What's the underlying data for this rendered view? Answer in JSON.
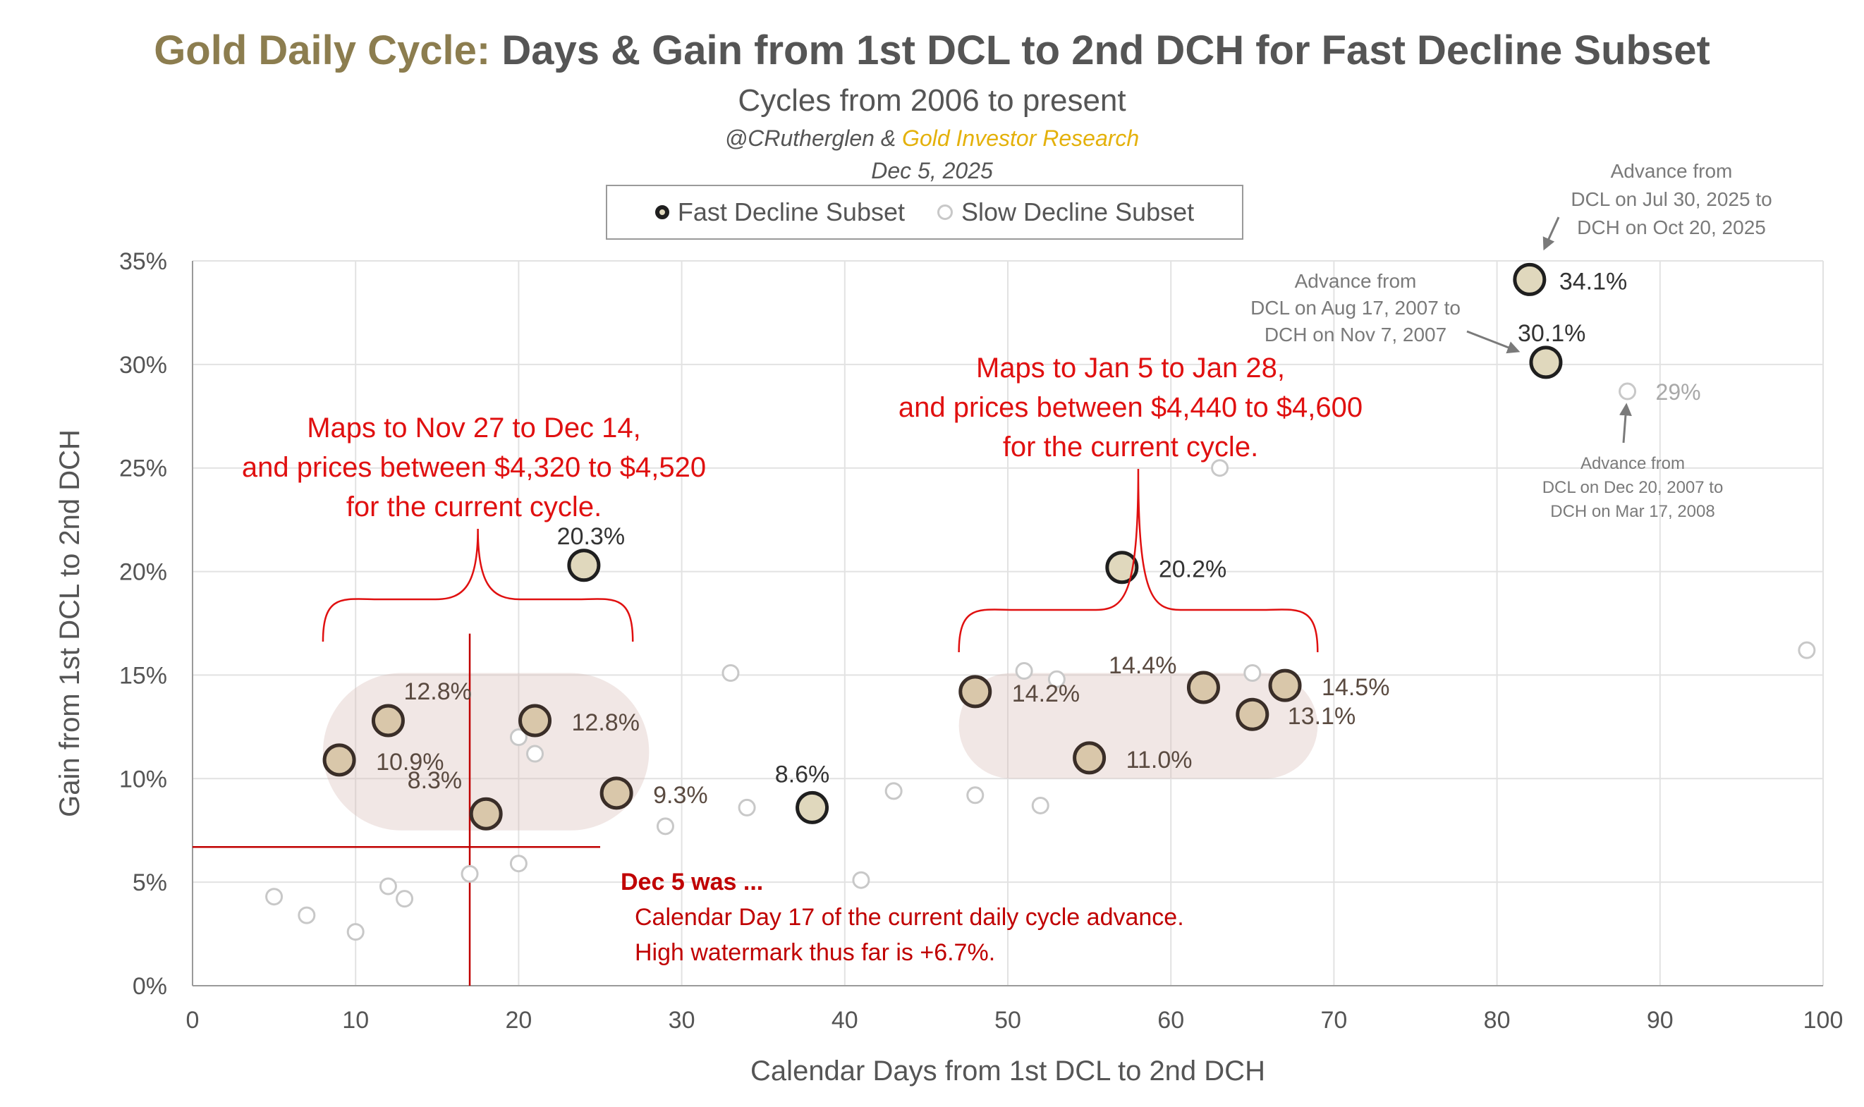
{
  "title": {
    "accent": "Gold Daily Cycle:",
    "main": " Days & Gain from 1st DCL to 2nd DCH for Fast Decline Subset"
  },
  "subtitle": "Cycles from 2006 to present",
  "credit": {
    "handle": "@CRutherglen & ",
    "brand": "Gold Investor Research"
  },
  "date": "Dec 5, 2025",
  "legend": {
    "fast": "Fast Decline Subset",
    "slow": "Slow Decline Subset"
  },
  "colors": {
    "fast_fill": "#e0d8bd",
    "fast_stroke": "#1f1f1f",
    "cluster_fill": "#d8b9b4",
    "cluster_point_fill": "#d9c7aa",
    "cluster_point_stroke": "#3a2e28",
    "slow_stroke": "#c8c8c8",
    "grid": "#e2e2e2",
    "red": "#e01010",
    "darkred": "#c00000",
    "axis_text": "#555555"
  },
  "chart_data": {
    "type": "scatter",
    "xlabel": "Calendar Days from 1st DCL to 2nd DCH",
    "ylabel": "Gain from 1st DCL to 2nd DCH",
    "xlim": [
      0,
      100
    ],
    "ylim": [
      0,
      35
    ],
    "xticks": [
      0,
      10,
      20,
      30,
      40,
      50,
      60,
      70,
      80,
      90,
      100
    ],
    "yticks": [
      0,
      5,
      10,
      15,
      20,
      25,
      30,
      35
    ],
    "ytick_labels": [
      "0%",
      "5%",
      "10%",
      "15%",
      "20%",
      "25%",
      "30%",
      "35%"
    ],
    "grid": true,
    "series": [
      {
        "name": "Fast Decline Subset",
        "points": [
          {
            "x": 9,
            "y": 10.9,
            "label": "10.9%",
            "cluster": true
          },
          {
            "x": 12,
            "y": 12.8,
            "label": "12.8%",
            "cluster": true
          },
          {
            "x": 18,
            "y": 8.3,
            "label": "8.3%",
            "cluster": true
          },
          {
            "x": 21,
            "y": 12.8,
            "label": "12.8%",
            "cluster": true
          },
          {
            "x": 26,
            "y": 9.3,
            "label": "9.3%",
            "cluster": true
          },
          {
            "x": 24,
            "y": 20.3,
            "label": "20.3%",
            "cluster": false
          },
          {
            "x": 38,
            "y": 8.6,
            "label": "8.6%",
            "cluster": false
          },
          {
            "x": 48,
            "y": 14.2,
            "label": "14.2%",
            "cluster": true
          },
          {
            "x": 55,
            "y": 11.0,
            "label": "11.0%",
            "cluster": true
          },
          {
            "x": 62,
            "y": 14.4,
            "label": "14.4%",
            "cluster": true
          },
          {
            "x": 65,
            "y": 13.1,
            "label": "13.1%",
            "cluster": true
          },
          {
            "x": 67,
            "y": 14.5,
            "label": "14.5%",
            "cluster": true
          },
          {
            "x": 57,
            "y": 20.2,
            "label": "20.2%",
            "cluster": false
          },
          {
            "x": 83,
            "y": 30.1,
            "label": "30.1%",
            "cluster": false
          },
          {
            "x": 82,
            "y": 34.1,
            "label": "34.1%",
            "cluster": false
          }
        ]
      },
      {
        "name": "Slow Decline Subset",
        "points": [
          {
            "x": 5,
            "y": 4.3
          },
          {
            "x": 7,
            "y": 3.4
          },
          {
            "x": 10,
            "y": 2.6
          },
          {
            "x": 12,
            "y": 4.8
          },
          {
            "x": 13,
            "y": 4.2
          },
          {
            "x": 17,
            "y": 5.4
          },
          {
            "x": 20,
            "y": 5.9
          },
          {
            "x": 20,
            "y": 12.0
          },
          {
            "x": 21,
            "y": 11.2
          },
          {
            "x": 29,
            "y": 7.7
          },
          {
            "x": 33,
            "y": 15.1
          },
          {
            "x": 34,
            "y": 8.6
          },
          {
            "x": 41,
            "y": 5.1
          },
          {
            "x": 43,
            "y": 9.4
          },
          {
            "x": 48,
            "y": 9.2
          },
          {
            "x": 51,
            "y": 15.2
          },
          {
            "x": 52,
            "y": 8.7
          },
          {
            "x": 53,
            "y": 14.8
          },
          {
            "x": 63,
            "y": 25.0
          },
          {
            "x": 65,
            "y": 15.1
          },
          {
            "x": 88,
            "y": 28.7,
            "label": "29%"
          },
          {
            "x": 99,
            "y": 16.2
          }
        ]
      }
    ],
    "clusters": [
      {
        "x0": 8,
        "x1": 28,
        "y0": 7.5,
        "y1": 15.1
      },
      {
        "x0": 47,
        "x1": 69,
        "y0": 10.0,
        "y1": 15.1
      }
    ],
    "current_cycle_marker": {
      "x": 17,
      "y": 6.7,
      "vline_top": 17.0,
      "hline_right": 25
    },
    "annotations": {
      "left_bracket": {
        "lines": [
          "Maps to Nov 27 to Dec 14,",
          "and prices between $4,320 to $4,520",
          "for the current cycle."
        ],
        "x0": 8,
        "x1": 27
      },
      "right_bracket": {
        "lines": [
          "Maps to Jan 5 to Jan 28,",
          "and prices between $4,440 to $4,600",
          "for the current cycle."
        ],
        "x0": 47,
        "x1": 69
      },
      "dec5": {
        "heading": "Dec 5 was ...",
        "lines": [
          "Calendar Day 17 of the current daily cycle advance.",
          "High watermark thus far is +6.7%."
        ]
      },
      "callout_2025": [
        "Advance from",
        "DCL on Jul 30, 2025 to",
        "DCH on Oct 20, 2025"
      ],
      "callout_2007": [
        "Advance from",
        "DCL on Aug 17, 2007 to",
        "DCH on Nov 7, 2007"
      ],
      "callout_2008": [
        "Advance from",
        "DCL on Dec 20, 2007 to",
        "DCH on Mar 17, 2008"
      ]
    }
  }
}
